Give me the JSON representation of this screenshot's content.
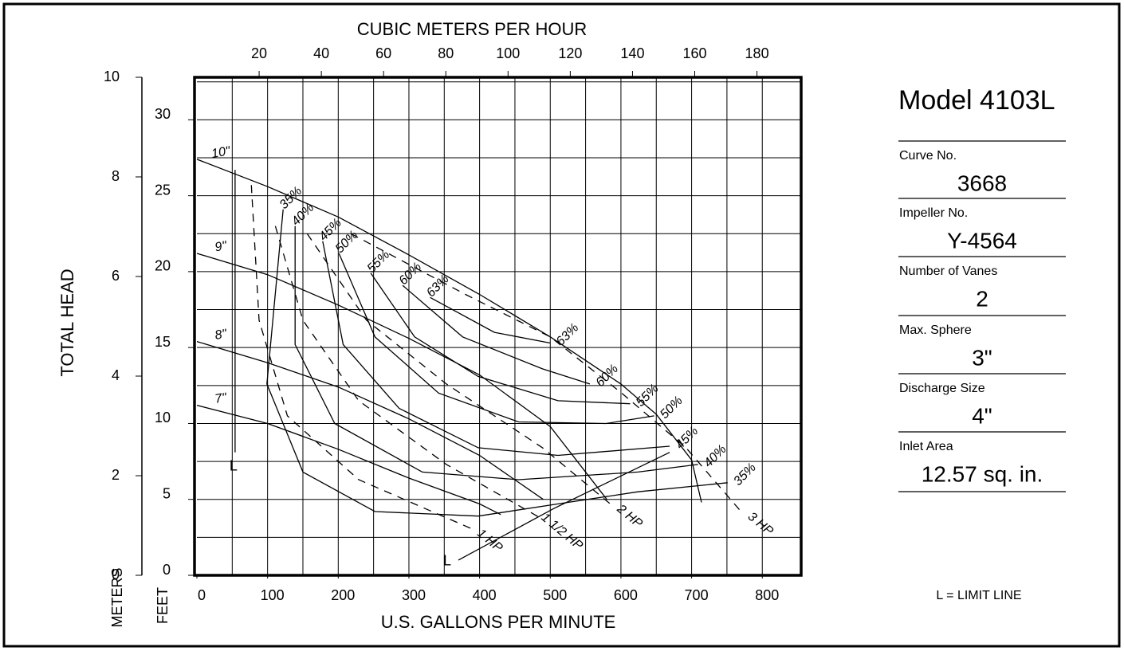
{
  "chart_data": {
    "type": "line",
    "title": "CUBIC METERS PER HOUR",
    "x_label": "U.S. GALLONS PER MINUTE",
    "y_label": "TOTAL HEAD",
    "y_unit_label": "FEET",
    "y2_unit_label": "METERS",
    "color": "#000000",
    "xlim": [
      0,
      855
    ],
    "xticks": [
      0,
      100,
      200,
      300,
      400,
      500,
      600,
      700,
      800
    ],
    "xgrid": [
      50,
      100,
      150,
      200,
      250,
      300,
      350,
      400,
      450,
      500,
      550,
      600,
      650,
      700,
      750,
      800
    ],
    "x2lim": [
      0,
      194.2
    ],
    "x2ticks": [
      20,
      40,
      60,
      80,
      100,
      120,
      140,
      160,
      180
    ],
    "ylim": [
      0,
      32.8
    ],
    "yticks": [
      0,
      5,
      10,
      15,
      20,
      25,
      30
    ],
    "ygrid": [
      2.5,
      5,
      7.5,
      10,
      12.5,
      15,
      17.5,
      20,
      22.5,
      25,
      27.5,
      30,
      32.5
    ],
    "y2lim": [
      0,
      10
    ],
    "y2ticks": [
      0,
      2,
      4,
      6,
      8,
      10
    ],
    "grid": true,
    "impellers": [
      {
        "name": "10\"",
        "x": [
          0,
          100,
          200,
          300,
          400,
          500,
          600,
          650,
          700,
          714
        ],
        "values": [
          27.4,
          25.6,
          23.6,
          21.1,
          18.5,
          15.7,
          12.6,
          10.6,
          7.6,
          4.8
        ]
      },
      {
        "name": "9\"",
        "x": [
          0,
          100,
          200,
          300,
          400,
          500,
          580
        ],
        "values": [
          21.2,
          19.8,
          17.8,
          15.6,
          13.2,
          9.8,
          5
        ]
      },
      {
        "name": "8\"",
        "x": [
          0,
          100,
          200,
          300,
          400,
          490
        ],
        "values": [
          15.4,
          14,
          12.4,
          10.3,
          7.9,
          5
        ]
      },
      {
        "name": "7\"",
        "x": [
          0,
          100,
          200,
          300,
          400,
          430
        ],
        "values": [
          11.2,
          10,
          8.3,
          6.4,
          4.7,
          4
        ]
      }
    ],
    "efficiency": [
      {
        "name": "35%",
        "x": [
          122,
          99,
          150,
          252,
          398,
          511,
          624,
          751
        ],
        "values": [
          24.1,
          12.6,
          6.8,
          4.2,
          3.9,
          4.7,
          5.5,
          6.1
        ]
      },
      {
        "name": "40%",
        "x": [
          139,
          139,
          195,
          319,
          455,
          624,
          709
        ],
        "values": [
          23,
          15.2,
          10,
          6.8,
          6.3,
          6.8,
          7.3
        ]
      },
      {
        "name": "45%",
        "x": [
          178,
          207,
          286,
          398,
          511,
          669
        ],
        "values": [
          22,
          15.2,
          11,
          8.4,
          7.9,
          8.5
        ]
      },
      {
        "name": "50%",
        "x": [
          201,
          252,
          342,
          455,
          579,
          647
        ],
        "values": [
          21.2,
          15.7,
          12,
          10.1,
          10,
          10.5
        ]
      },
      {
        "name": "55%",
        "x": [
          246,
          308,
          398,
          511,
          613
        ],
        "values": [
          19.9,
          15.7,
          13.1,
          11.5,
          11.3
        ]
      },
      {
        "name": "60%",
        "x": [
          291,
          376,
          489,
          556
        ],
        "values": [
          19.1,
          15.7,
          13.6,
          12.6
        ]
      },
      {
        "name": "63%",
        "x": [
          330,
          421,
          500
        ],
        "values": [
          18.3,
          16,
          15.3
        ]
      }
    ],
    "horsepower": [
      {
        "name": "1 HP",
        "x": [
          77,
          88,
          128,
          229,
          387
        ],
        "values": [
          25.7,
          16.8,
          10.5,
          6.3,
          3.1
        ]
      },
      {
        "name": "1 1/2 HP",
        "x": [
          111,
          150,
          229,
          353,
          489
        ],
        "values": [
          23,
          16.8,
          11.5,
          7.3,
          3.7
        ]
      },
      {
        "name": "2 HP",
        "x": [
          156,
          240,
          353,
          489,
          585
        ],
        "values": [
          22.5,
          16.8,
          12.6,
          8.4,
          4.7
        ]
      },
      {
        "name": "3 HP",
        "x": [
          218,
          380,
          500,
          601,
          692,
          770
        ],
        "values": [
          22.5,
          18.5,
          15.7,
          12,
          8.4,
          4.2
        ]
      }
    ],
    "limit_lines": [
      {
        "name": "L",
        "x": [
          54,
          54
        ],
        "values": [
          8.1,
          26.7
        ]
      },
      {
        "name": "L",
        "x": [
          370,
          505,
          669
        ],
        "values": [
          1,
          4.4,
          8.1
        ]
      }
    ]
  },
  "info_panel": {
    "model": "Model  4103L",
    "fields": [
      {
        "label": "Curve No.",
        "value": "3668"
      },
      {
        "label": "Impeller No.",
        "value": "Y-4564"
      },
      {
        "label": "Number of Vanes",
        "value": "2"
      },
      {
        "label": "Max. Sphere",
        "value": "3\""
      },
      {
        "label": "Discharge Size",
        "value": "4\""
      },
      {
        "label": "Inlet Area",
        "value": "12.57 sq. in."
      }
    ],
    "legend_note": "L = LIMIT LINE"
  }
}
